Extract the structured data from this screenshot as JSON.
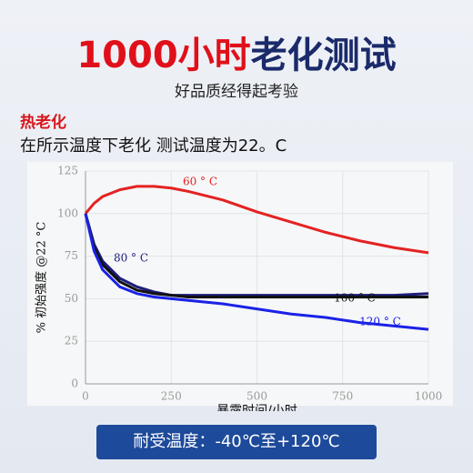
{
  "header": {
    "title_part1": "1000小时",
    "title_part2": "老化测试",
    "subtitle": "好品质经得起考验"
  },
  "section": {
    "heading": "热老化",
    "description": "在所示温度下老化 测试温度为22。C"
  },
  "chart_data": {
    "type": "line",
    "x_label": "暴露时间/小时",
    "y_label": "% 初始强度 @22 °C",
    "x": [
      0,
      25,
      50,
      100,
      150,
      200,
      250,
      300,
      400,
      500,
      600,
      700,
      800,
      900,
      1000
    ],
    "series": [
      {
        "name": "60 ° C",
        "color": "#e42222",
        "values": [
          100,
          106,
          110,
          114,
          116,
          116,
          115,
          113,
          108,
          101,
          95,
          89,
          84,
          80,
          77
        ]
      },
      {
        "name": "80 ° C",
        "color": "#1c1c7a",
        "values": [
          100,
          82,
          72,
          62,
          57,
          54,
          52,
          52,
          52,
          52,
          52,
          52,
          52,
          52,
          53
        ]
      },
      {
        "name": "100 ° C",
        "color": "#111111",
        "values": [
          100,
          80,
          70,
          60,
          55,
          53,
          52,
          51,
          51,
          51,
          51,
          51,
          51,
          51,
          51
        ]
      },
      {
        "name": "120 ° C",
        "color": "#1a22e6",
        "values": [
          100,
          78,
          67,
          57,
          53,
          51,
          50,
          49,
          47,
          44,
          41,
          39,
          36,
          34,
          32
        ]
      }
    ],
    "xlim": [
      0,
      1000
    ],
    "xticks": [
      0,
      250,
      500,
      750,
      1000
    ],
    "ylim": [
      0,
      125
    ],
    "yticks": [
      0,
      25,
      50,
      75,
      100,
      125
    ],
    "grid": true
  },
  "footer": {
    "banner": "耐受温度：-40℃至+120℃"
  }
}
